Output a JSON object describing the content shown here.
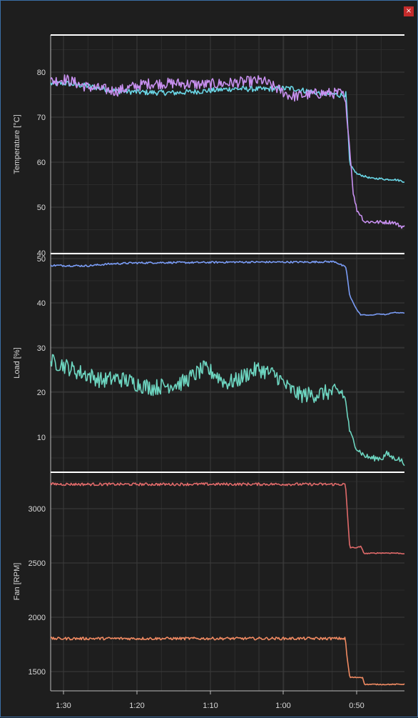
{
  "window": {
    "close_label": "×"
  },
  "colors": {
    "background": "#1e1e1e",
    "grid_major": "#3c3c3c",
    "grid_minor": "#2c2c2c",
    "axis": "#ffffff"
  },
  "chart_data": [
    {
      "type": "line",
      "ylabel": "Temperature [°C]",
      "ylim": [
        40,
        88
      ],
      "yticks": [
        "80",
        "70",
        "60",
        "50",
        "40"
      ],
      "xlim": [
        95,
        46.5
      ],
      "xticks": [
        "1:30",
        "1:20",
        "1:10",
        "1:00",
        "0:50"
      ],
      "grid": true,
      "series": [
        {
          "color": "#6ad6e6",
          "x": [
            95,
            93,
            90,
            86,
            82,
            78,
            74,
            70,
            66,
            62,
            58,
            55,
            54.5,
            54,
            53,
            52,
            51,
            50,
            49,
            48,
            47,
            46.5
          ],
          "y": [
            77.3,
            77.4,
            76.8,
            75.7,
            75.4,
            75.3,
            75.7,
            76.2,
            76.1,
            76.3,
            75.2,
            74.8,
            75.0,
            59.5,
            57.5,
            57.0,
            56.5,
            56.5,
            56.3,
            56.3,
            56.0,
            55.8
          ]
        },
        {
          "color": "#c890f0",
          "x": [
            95,
            93,
            90,
            86,
            82,
            78,
            74,
            70,
            66,
            62,
            58,
            55,
            54.5,
            54,
            53.5,
            53,
            52.5,
            52,
            51,
            50,
            49,
            48,
            47,
            46.5
          ],
          "y": [
            77.8,
            78.3,
            76.6,
            75.7,
            77.3,
            77.4,
            77.1,
            77.5,
            78.0,
            74.5,
            75.2,
            75.2,
            72.0,
            63.0,
            53.0,
            49.5,
            48.5,
            47.0,
            47.0,
            46.9,
            46.9,
            46.9,
            46.0,
            45.9
          ]
        }
      ]
    },
    {
      "type": "line",
      "ylabel": "Load [%]",
      "ylim": [
        3.5,
        50
      ],
      "yticks": [
        "50",
        "40",
        "30",
        "20",
        "10"
      ],
      "xlim": [
        95,
        46.5
      ],
      "xticks": [
        "1:30",
        "1:20",
        "1:10",
        "1:00",
        "0:50"
      ],
      "grid": true,
      "series": [
        {
          "color": "#7a9cf5",
          "x": [
            95,
            90,
            87,
            84,
            80,
            75,
            70,
            65,
            60,
            56,
            54.5,
            54,
            53,
            52.5,
            51,
            50,
            49,
            48,
            47,
            46.5
          ],
          "y": [
            47.5,
            47.4,
            47.8,
            48.0,
            48.1,
            48.1,
            48.2,
            48.2,
            48.2,
            48.3,
            47.0,
            41.0,
            38.0,
            37.0,
            36.9,
            37.2,
            37.0,
            37.5,
            37.4,
            37.4
          ]
        },
        {
          "color": "#6dd5c0",
          "x": [
            95,
            93.5,
            91.5,
            89.5,
            88,
            86,
            84.5,
            82.5,
            81,
            79,
            77,
            75.5,
            74,
            72.5,
            71,
            69.5,
            68,
            66.5,
            64,
            62.5,
            61,
            59,
            57,
            55,
            54.5,
            54,
            53,
            52,
            51,
            50,
            49.5,
            49,
            48,
            47.5,
            47,
            46.5
          ],
          "y": [
            27.0,
            26.5,
            25.0,
            24.0,
            23.0,
            23.5,
            23.0,
            22.0,
            21.5,
            22.0,
            22.5,
            24.0,
            25.5,
            24.5,
            22.5,
            23.0,
            24.5,
            25.5,
            24.0,
            21.5,
            20.0,
            20.0,
            20.5,
            20.5,
            18.0,
            12.0,
            8.5,
            7.0,
            6.5,
            6.5,
            6.5,
            7.5,
            6.5,
            6.5,
            6.0,
            5.5
          ]
        }
      ]
    },
    {
      "type": "line",
      "ylabel": "Fan [RPM]",
      "ylim": [
        1320,
        3350
      ],
      "yticks": [
        "3000",
        "2500",
        "2000",
        "1500"
      ],
      "xlim": [
        95,
        46.5
      ],
      "xticks": [
        "1:30",
        "1:20",
        "1:10",
        "1:00",
        "0:50"
      ],
      "grid": true,
      "series": [
        {
          "color": "#e06a6a",
          "x": [
            95,
            90,
            85,
            80,
            75,
            70,
            65,
            60,
            56,
            54.6,
            54.4,
            54,
            53,
            52.5,
            52,
            50,
            48,
            46.5
          ],
          "y": [
            3240,
            3238,
            3238,
            3238,
            3239,
            3239,
            3239,
            3238,
            3238,
            3238,
            3050,
            2650,
            2650,
            2660,
            2595,
            2600,
            2600,
            2595
          ]
        },
        {
          "color": "#f08a62",
          "x": [
            95,
            90,
            85,
            80,
            75,
            70,
            65,
            60,
            56,
            54.6,
            54.4,
            54,
            53,
            52.2,
            52,
            50,
            48,
            46.5
          ],
          "y": [
            1805,
            1806,
            1806,
            1806,
            1806,
            1806,
            1806,
            1806,
            1806,
            1806,
            1650,
            1445,
            1445,
            1445,
            1380,
            1380,
            1380,
            1382
          ]
        }
      ]
    }
  ]
}
